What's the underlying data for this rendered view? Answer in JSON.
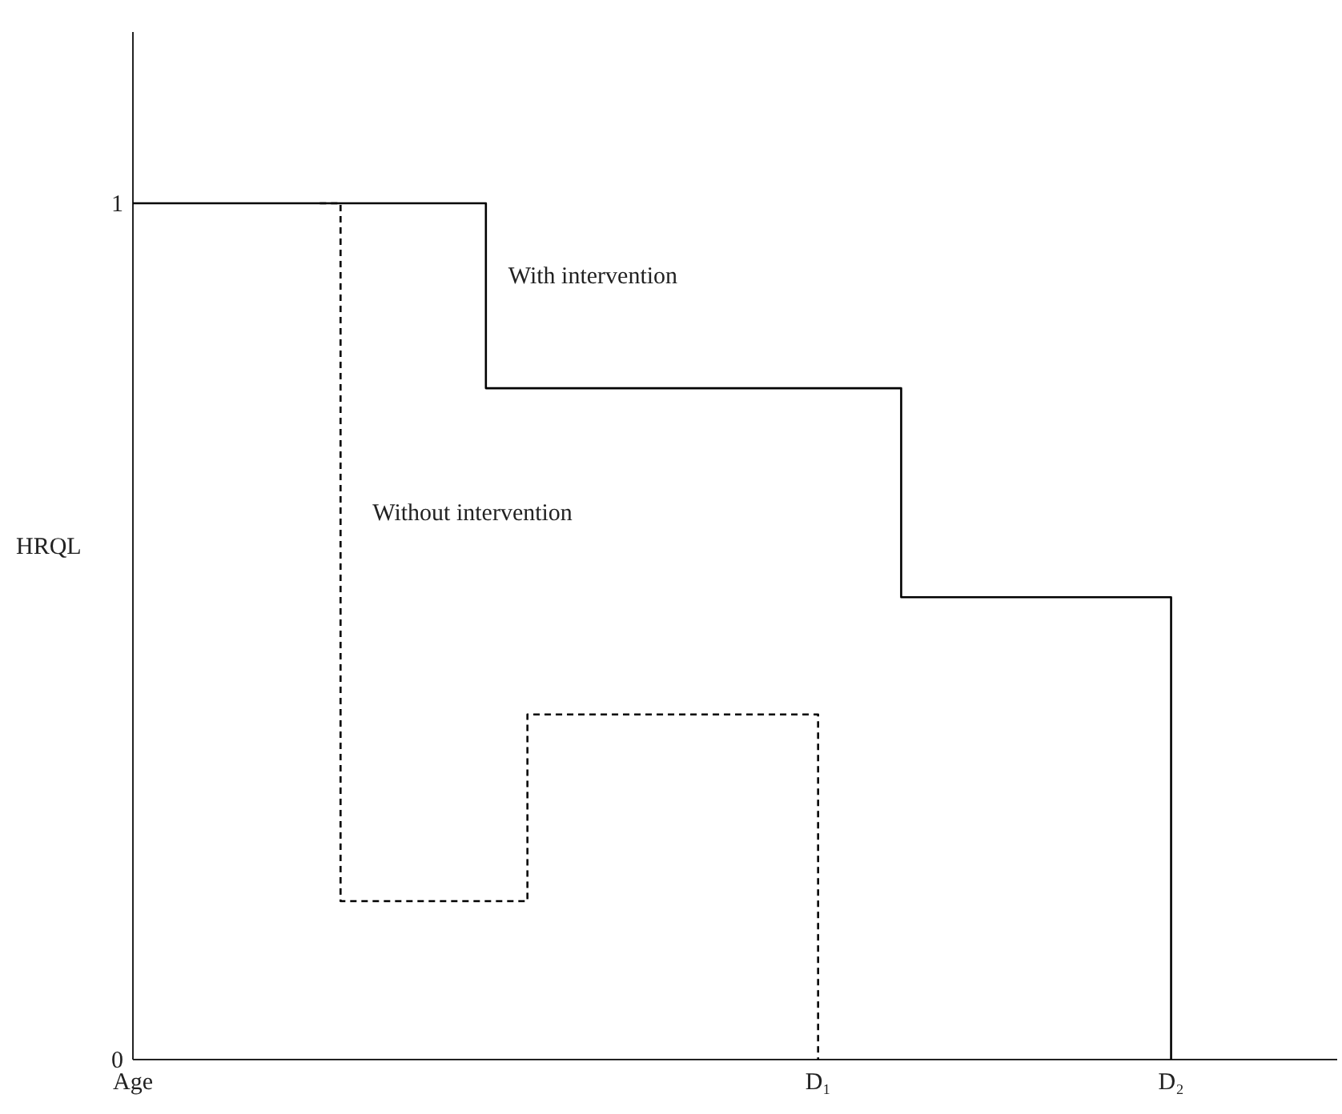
{
  "chart_data": {
    "type": "step",
    "ylabel": "HRQL",
    "ylim": [
      0,
      1.2
    ],
    "yticks": [
      0,
      1
    ],
    "grid": false,
    "marker": "none",
    "categories": [
      "Age",
      null,
      null,
      null,
      null,
      null,
      null,
      null,
      null,
      null,
      null,
      null,
      null,
      null,
      null,
      null,
      null,
      null,
      null,
      null,
      null,
      null,
      null,
      null,
      null,
      null,
      null,
      null,
      null,
      null,
      null,
      null,
      null,
      "D₁",
      null,
      null,
      null,
      null,
      null,
      null,
      null,
      null,
      null,
      null,
      null,
      null,
      null,
      null,
      null,
      null,
      "D₂",
      null,
      null,
      null,
      null,
      null,
      null,
      null,
      null
    ],
    "series": [
      {
        "name": "With intervention",
        "color": "#000000",
        "line_style": "solid",
        "values": [
          1,
          1,
          1,
          1,
          1,
          1,
          1,
          1,
          1,
          1,
          1,
          1,
          1,
          1,
          1,
          1,
          1,
          0.784,
          0.784,
          0.784,
          0.784,
          0.784,
          0.784,
          0.784,
          0.784,
          0.784,
          0.784,
          0.784,
          0.784,
          0.784,
          0.784,
          0.784,
          0.784,
          0.784,
          0.784,
          0.784,
          0.784,
          0.54,
          0.54,
          0.54,
          0.54,
          0.54,
          0.54,
          0.54,
          0.54,
          0.54,
          0.54,
          0.54,
          0.54,
          0.54,
          0,
          null,
          null,
          null,
          null,
          null,
          null,
          null,
          null
        ]
      },
      {
        "name": "Without intervention",
        "color": "#000000",
        "line_style": "dashed",
        "values": [
          null,
          null,
          null,
          null,
          null,
          null,
          null,
          null,
          null,
          1,
          0.185,
          0.185,
          0.185,
          0.185,
          0.185,
          0.185,
          0.185,
          0.185,
          0.185,
          0.403,
          0.403,
          0.403,
          0.403,
          0.403,
          0.403,
          0.403,
          0.403,
          0.403,
          0.403,
          0.403,
          0.403,
          0.403,
          0.403,
          0,
          null,
          null,
          null,
          null,
          null,
          null,
          null,
          null,
          null,
          null,
          null,
          null,
          null,
          null,
          null,
          null,
          null,
          null,
          null,
          null,
          null,
          null,
          null,
          null,
          null
        ]
      }
    ]
  }
}
